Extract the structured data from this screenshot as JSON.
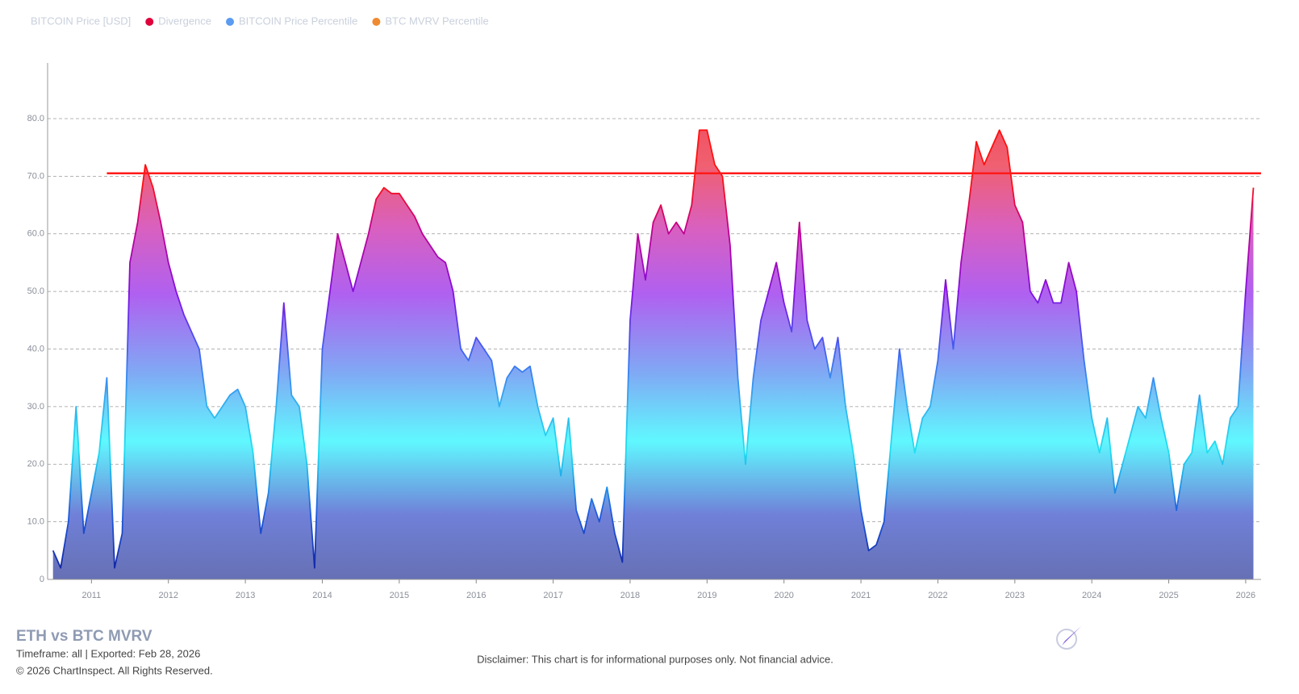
{
  "chart_data": {
    "type": "area",
    "title": "ETH vs BTC MVRV",
    "subtitle": "Timeframe: all | Exported: Feb 28, 2026",
    "copyright": "© 2026 ChartInspect. All Rights Reserved.",
    "disclaimer": "Disclaimer: This chart is for informational purposes only. Not financial advice.",
    "legend": [
      {
        "name": "BITCOIN Price [USD]",
        "color": "#c9d0dc"
      },
      {
        "name": "Divergence",
        "color": "#e0003c"
      },
      {
        "name": "BITCOIN Price Percentile",
        "color": "#5b9bf0"
      },
      {
        "name": "BTC MVRV Percentile",
        "color": "#f08a30"
      }
    ],
    "x": [
      2010.5,
      2010.6,
      2010.7,
      2010.8,
      2010.9,
      2011.0,
      2011.1,
      2011.2,
      2011.3,
      2011.4,
      2011.5,
      2011.6,
      2011.7,
      2011.8,
      2011.9,
      2012.0,
      2012.1,
      2012.2,
      2012.3,
      2012.4,
      2012.5,
      2012.6,
      2012.7,
      2012.8,
      2012.9,
      2013.0,
      2013.1,
      2013.2,
      2013.3,
      2013.4,
      2013.5,
      2013.6,
      2013.7,
      2013.8,
      2013.9,
      2014.0,
      2014.1,
      2014.2,
      2014.3,
      2014.4,
      2014.5,
      2014.6,
      2014.7,
      2014.8,
      2014.9,
      2015.0,
      2015.1,
      2015.2,
      2015.3,
      2015.4,
      2015.5,
      2015.6,
      2015.7,
      2015.8,
      2015.9,
      2016.0,
      2016.1,
      2016.2,
      2016.3,
      2016.4,
      2016.5,
      2016.6,
      2016.7,
      2016.8,
      2016.9,
      2017.0,
      2017.1,
      2017.2,
      2017.3,
      2017.4,
      2017.5,
      2017.6,
      2017.7,
      2017.8,
      2017.9,
      2018.0,
      2018.1,
      2018.2,
      2018.3,
      2018.4,
      2018.5,
      2018.6,
      2018.7,
      2018.8,
      2018.9,
      2019.0,
      2019.1,
      2019.2,
      2019.3,
      2019.4,
      2019.5,
      2019.6,
      2019.7,
      2019.8,
      2019.9,
      2020.0,
      2020.1,
      2020.2,
      2020.3,
      2020.4,
      2020.5,
      2020.6,
      2020.7,
      2020.8,
      2020.9,
      2021.0,
      2021.1,
      2021.2,
      2021.3,
      2021.4,
      2021.5,
      2021.6,
      2021.7,
      2021.8,
      2021.9,
      2022.0,
      2022.1,
      2022.2,
      2022.3,
      2022.4,
      2022.5,
      2022.6,
      2022.7,
      2022.8,
      2022.9,
      2023.0,
      2023.1,
      2023.2,
      2023.3,
      2023.4,
      2023.5,
      2023.6,
      2023.7,
      2023.8,
      2023.9,
      2024.0,
      2024.1,
      2024.2,
      2024.3,
      2024.4,
      2024.5,
      2024.6,
      2024.7,
      2024.8,
      2024.9,
      2025.0,
      2025.1,
      2025.2,
      2025.3,
      2025.4,
      2025.5,
      2025.6,
      2025.7,
      2025.8,
      2025.9,
      2026.0,
      2026.1
    ],
    "series": [
      {
        "name": "Divergence",
        "color": "#e0003c",
        "values": [
          5,
          2,
          10,
          30,
          8,
          15,
          22,
          35,
          2,
          8,
          55,
          62,
          72,
          68,
          62,
          55,
          50,
          46,
          43,
          40,
          30,
          28,
          30,
          32,
          33,
          30,
          22,
          8,
          15,
          30,
          48,
          32,
          30,
          20,
          2,
          40,
          50,
          60,
          55,
          50,
          55,
          60,
          66,
          68,
          67,
          67,
          65,
          63,
          60,
          58,
          56,
          55,
          50,
          40,
          38,
          42,
          40,
          38,
          30,
          35,
          37,
          36,
          37,
          30,
          25,
          28,
          18,
          28,
          12,
          8,
          14,
          10,
          16,
          8,
          3,
          45,
          60,
          52,
          62,
          65,
          60,
          62,
          60,
          65,
          78,
          78,
          72,
          70,
          58,
          35,
          20,
          35,
          45,
          50,
          55,
          48,
          43,
          62,
          45,
          40,
          42,
          35,
          42,
          30,
          22,
          12,
          5,
          6,
          10,
          25,
          40,
          30,
          22,
          28,
          30,
          38,
          52,
          40,
          55,
          65,
          76,
          72,
          75,
          78,
          75,
          65,
          62,
          50,
          48,
          52,
          48,
          48,
          55,
          50,
          38,
          28,
          22,
          28,
          15,
          20,
          25,
          30,
          28,
          35,
          28,
          22,
          12,
          20,
          22,
          32,
          22,
          24,
          20,
          28,
          30,
          50,
          68
        ]
      }
    ],
    "threshold": {
      "value": 70.5,
      "x": [
        2011.2,
        2026.2
      ],
      "color": "#ff1a1a"
    },
    "xlim": [
      2010.43,
      2026.2
    ],
    "xticks": [
      2011,
      2012,
      2013,
      2014,
      2015,
      2016,
      2017,
      2018,
      2019,
      2020,
      2021,
      2022,
      2023,
      2024,
      2025,
      2026
    ],
    "ylim": [
      0,
      89
    ],
    "yticks": [
      0,
      {
        "value": 10,
        "label": "10.0"
      },
      {
        "value": 20,
        "label": "20.0"
      },
      {
        "value": 30,
        "label": "30.0"
      },
      {
        "value": 40,
        "label": "40.0"
      },
      {
        "value": 50,
        "label": "50.0"
      },
      {
        "value": 60,
        "label": "60.0"
      },
      {
        "value": 70,
        "label": "70.0"
      },
      {
        "value": 80,
        "label": "80.0"
      }
    ],
    "grid": true
  }
}
